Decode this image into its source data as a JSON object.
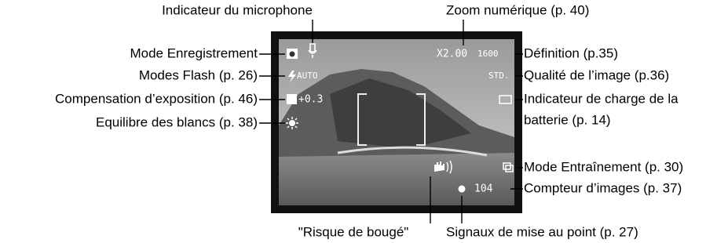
{
  "callouts": {
    "top": [
      "Indicateur du microphone",
      "Zoom numérique (p. 40)"
    ],
    "left": [
      "Mode Enregistrement",
      "Modes Flash (p. 26)",
      "Compensation d’exposition (p. 46)",
      "Equilibre des blancs (p. 38)"
    ],
    "right": [
      "Définition (p.35)",
      "Qualité de l’image (p.36)",
      "Indicateur de charge de la",
      "batterie (p. 14)",
      "Mode Entraînement (p. 30)",
      "Compteur d’images (p. 37)"
    ],
    "bottom": [
      "\"Risque de bougé\"",
      "Signaux de mise au point (p. 27)"
    ]
  },
  "screen": {
    "zoom": "X2.00",
    "resolution": "1600",
    "flash": "AUTO",
    "exposure": "+0.3",
    "quality": "STD.",
    "frame_count": "104"
  }
}
